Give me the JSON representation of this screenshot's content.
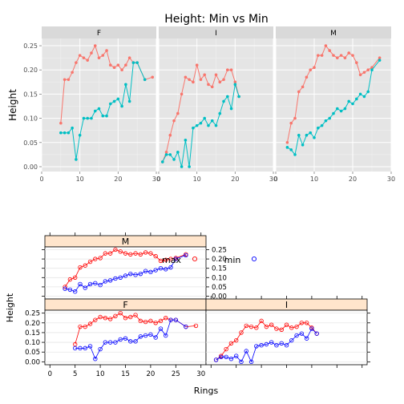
{
  "chart_data": [
    {
      "type": "line",
      "title": "Height: Min vs Min",
      "xlabel": "",
      "ylabel": "Height",
      "xlim": [
        0,
        30
      ],
      "ylim": [
        -0.01,
        0.265
      ],
      "x_ticks": [
        0,
        10,
        20,
        30
      ],
      "y_ticks": [
        0.0,
        0.05,
        0.1,
        0.15,
        0.2,
        0.25
      ],
      "y_tick_labels": [
        "0.00",
        "0.05",
        "0.10",
        "0.15",
        "0.20",
        "0.25"
      ],
      "grid": true,
      "panels": [
        {
          "label": "F",
          "series": [
            {
              "color": "#F8766D",
              "x": [
                5,
                6,
                7,
                8,
                9,
                10,
                11,
                12,
                13,
                14,
                15,
                16,
                17,
                18,
                19,
                20,
                21,
                22,
                23,
                24,
                25,
                27,
                29
              ],
              "values": [
                0.09,
                0.18,
                0.18,
                0.195,
                0.215,
                0.23,
                0.225,
                0.22,
                0.235,
                0.25,
                0.225,
                0.23,
                0.24,
                0.21,
                0.205,
                0.21,
                0.2,
                0.21,
                0.225,
                0.215,
                0.215,
                0.18,
                0.185
              ]
            },
            {
              "color": "#00BFC4",
              "x": [
                5,
                6,
                7,
                8,
                9,
                10,
                11,
                12,
                13,
                14,
                15,
                16,
                17,
                18,
                19,
                20,
                21,
                22,
                23,
                24,
                25,
                27
              ],
              "values": [
                0.07,
                0.07,
                0.07,
                0.08,
                0.015,
                0.065,
                0.1,
                0.1,
                0.1,
                0.115,
                0.12,
                0.105,
                0.105,
                0.13,
                0.135,
                0.14,
                0.125,
                0.17,
                0.135,
                0.215,
                0.215,
                0.18
              ]
            }
          ]
        },
        {
          "label": "I",
          "series": [
            {
              "color": "#F8766D",
              "x": [
                1,
                2,
                3,
                4,
                5,
                6,
                7,
                8,
                9,
                10,
                11,
                12,
                13,
                14,
                15,
                16,
                17,
                18,
                19,
                20,
                21
              ],
              "values": [
                0.01,
                0.03,
                0.065,
                0.095,
                0.11,
                0.15,
                0.185,
                0.18,
                0.175,
                0.21,
                0.18,
                0.19,
                0.17,
                0.165,
                0.19,
                0.175,
                0.18,
                0.2,
                0.2,
                0.175,
                0.145
              ]
            },
            {
              "color": "#00BFC4",
              "x": [
                1,
                2,
                3,
                4,
                5,
                6,
                7,
                8,
                9,
                10,
                11,
                12,
                13,
                14,
                15,
                16,
                17,
                18,
                19,
                20,
                21
              ],
              "values": [
                0.01,
                0.025,
                0.025,
                0.015,
                0.03,
                0.0,
                0.055,
                0.0,
                0.08,
                0.085,
                0.09,
                0.1,
                0.085,
                0.095,
                0.085,
                0.11,
                0.135,
                0.145,
                0.12,
                0.17,
                0.145
              ]
            }
          ]
        },
        {
          "label": "M",
          "series": [
            {
              "color": "#F8766D",
              "x": [
                3,
                4,
                5,
                6,
                7,
                8,
                9,
                10,
                11,
                12,
                13,
                14,
                15,
                16,
                17,
                18,
                19,
                20,
                21,
                22,
                23,
                24,
                25,
                27
              ],
              "values": [
                0.05,
                0.09,
                0.1,
                0.155,
                0.165,
                0.185,
                0.2,
                0.205,
                0.23,
                0.23,
                0.25,
                0.24,
                0.23,
                0.225,
                0.23,
                0.225,
                0.235,
                0.23,
                0.215,
                0.19,
                0.195,
                0.2,
                0.205,
                0.225
              ]
            },
            {
              "color": "#00BFC4",
              "x": [
                3,
                4,
                5,
                6,
                7,
                8,
                9,
                10,
                11,
                12,
                13,
                14,
                15,
                16,
                17,
                18,
                19,
                20,
                21,
                22,
                23,
                24,
                25,
                27
              ],
              "values": [
                0.04,
                0.035,
                0.025,
                0.065,
                0.045,
                0.065,
                0.07,
                0.06,
                0.08,
                0.085,
                0.095,
                0.1,
                0.11,
                0.12,
                0.115,
                0.12,
                0.135,
                0.13,
                0.14,
                0.15,
                0.145,
                0.155,
                0.2,
                0.22
              ]
            }
          ]
        }
      ]
    },
    {
      "type": "scatter",
      "title": "",
      "xlabel": "Rings",
      "ylabel": "Height",
      "xlim": [
        -1,
        31
      ],
      "ylim": [
        -0.015,
        0.265
      ],
      "x_ticks": [
        0,
        5,
        10,
        15,
        20,
        25,
        30
      ],
      "y_ticks": [
        0.0,
        0.05,
        0.1,
        0.15,
        0.2,
        0.25
      ],
      "y_tick_labels": [
        "0.00",
        "0.05",
        "0.10",
        "0.15",
        "0.20",
        "0.25"
      ],
      "grid": true,
      "legend": {
        "placement": "right",
        "entries": [
          {
            "name": "max",
            "color": "#FF0000"
          },
          {
            "name": "min",
            "color": "#0000FF"
          }
        ]
      },
      "panels": [
        {
          "label": "M",
          "ref": 2
        },
        {
          "label": "F",
          "ref": 0
        },
        {
          "label": "I",
          "ref": 1
        }
      ]
    }
  ]
}
